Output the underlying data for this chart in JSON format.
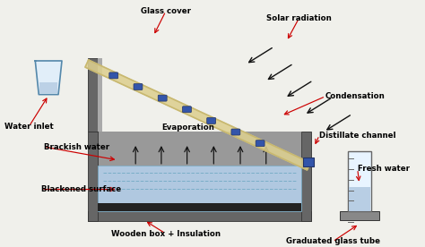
{
  "bg_color": "#f0f0eb",
  "labels": {
    "glass_cover": "Glass cover",
    "solar_radiation": "Solar radiation",
    "water_inlet": "Water inlet",
    "brackish_water": "Brackish water",
    "evaporation": "Evaporation",
    "condensation": "Condensation",
    "blackened_surface": "Blackened surface",
    "distillate_channel": "Distillate channel",
    "fresh_water": "Fresh water",
    "wooden_box": "Wooden box + Insulation",
    "graduated_tube": "Graduated glass tube"
  },
  "colors": {
    "dark_gray": "#444444",
    "medium_gray": "#777777",
    "light_gray": "#aaaaaa",
    "glass_tan": "#c8b870",
    "glass_tan_light": "#ddd090",
    "water_blue": "#b0c8e0",
    "water_blue_dark": "#7aaec8",
    "box_dark": "#333333",
    "box_medium": "#666666",
    "annotation_red": "#cc0000",
    "arrow_black": "#111111",
    "condensation_blue": "#3355aa",
    "cup_fill": "#ddeeff",
    "cup_outline": "#5588aa",
    "cyl_fill": "#e8f4ff",
    "base_gray": "#888888"
  }
}
